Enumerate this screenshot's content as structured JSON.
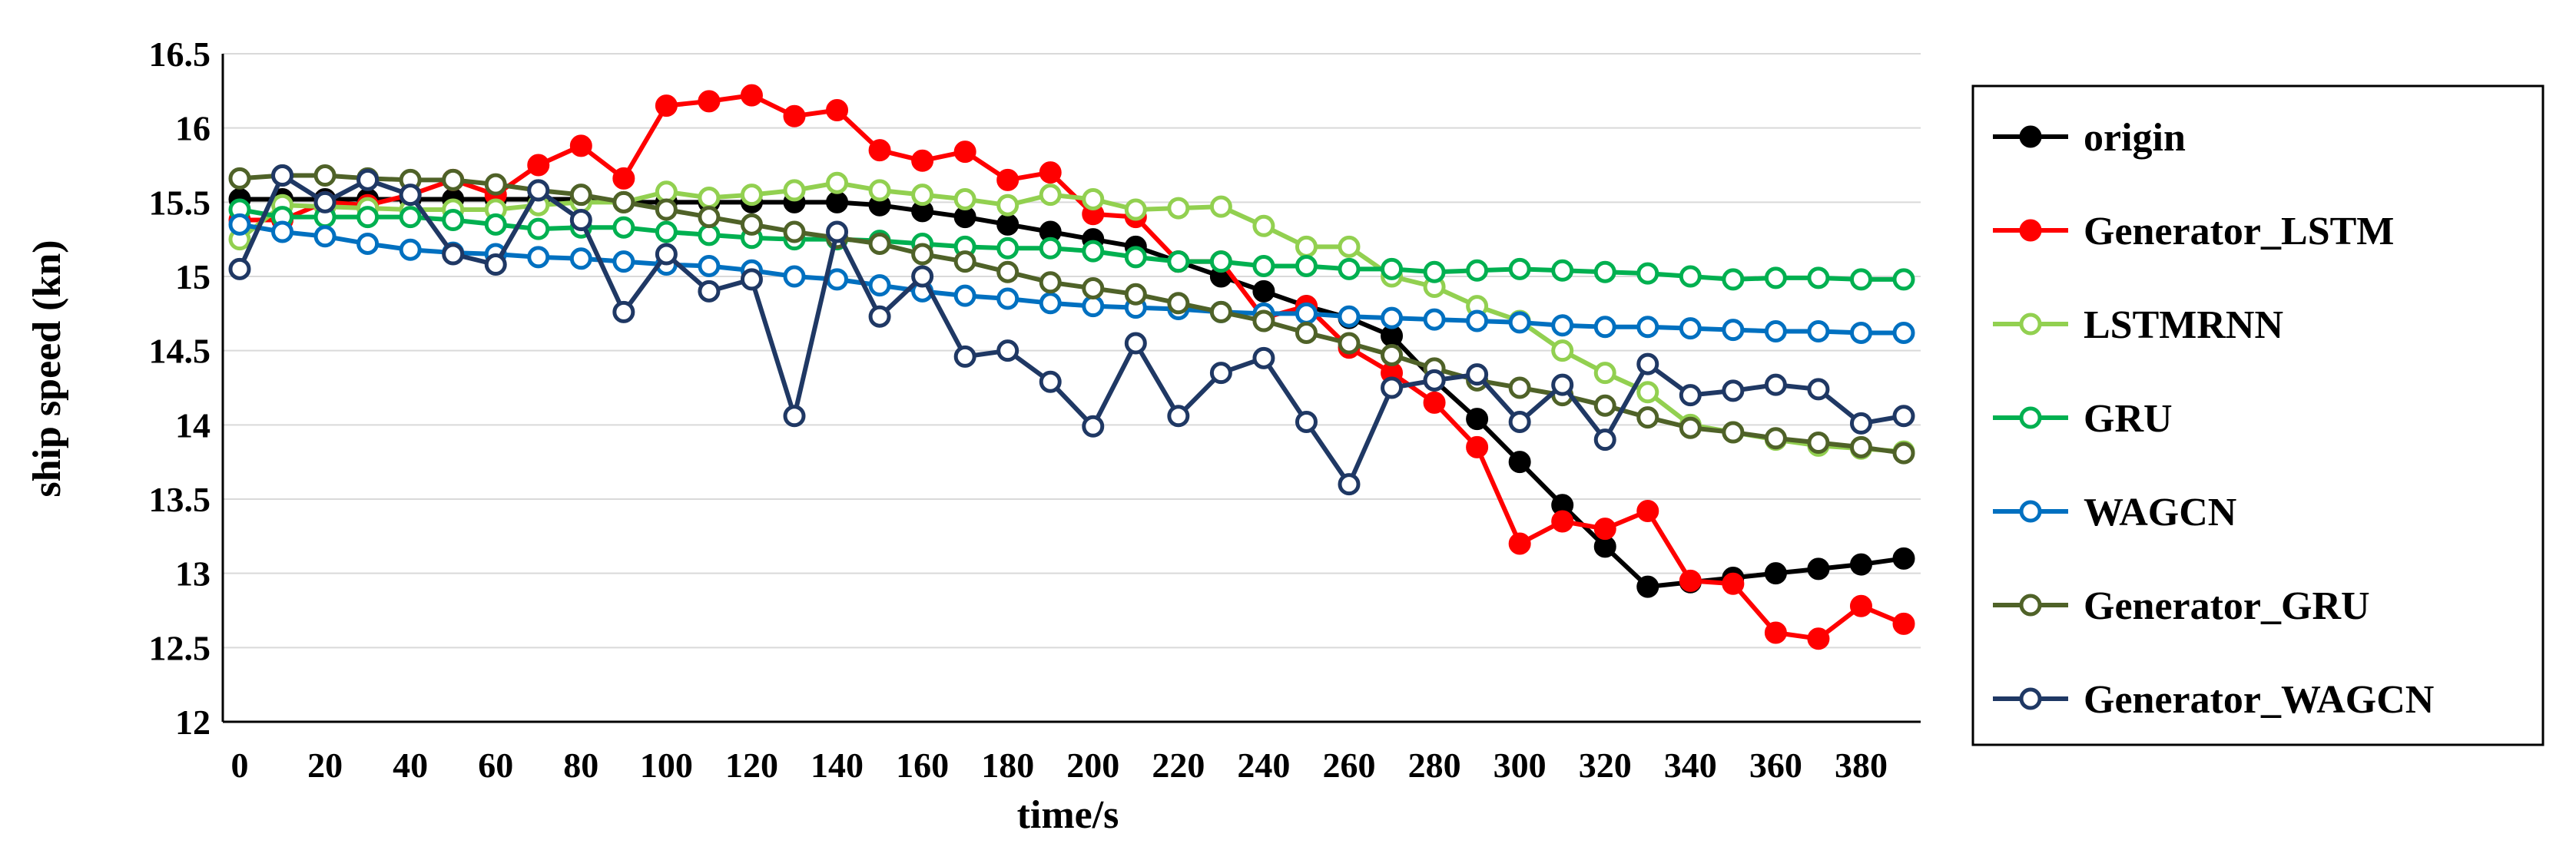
{
  "chart_data": {
    "type": "line",
    "title": "",
    "xlabel": "time/s",
    "ylabel": "ship speed (kn)",
    "xlim": [
      0,
      390
    ],
    "ylim": [
      12,
      16.5
    ],
    "x_ticks": [
      0,
      20,
      40,
      60,
      80,
      100,
      120,
      140,
      160,
      180,
      200,
      220,
      240,
      260,
      280,
      300,
      320,
      340,
      360,
      380
    ],
    "y_ticks": [
      "12",
      "12.5",
      "13",
      "13.5",
      "14",
      "14.5",
      "15",
      "15.5",
      "16",
      "16.5"
    ],
    "grid": "horizontal",
    "legend_position": "right",
    "x": [
      0,
      10,
      20,
      30,
      40,
      50,
      60,
      70,
      80,
      90,
      100,
      110,
      120,
      130,
      140,
      150,
      160,
      170,
      180,
      190,
      200,
      210,
      220,
      230,
      240,
      250,
      260,
      270,
      280,
      290,
      300,
      310,
      320,
      330,
      340,
      350,
      360,
      370,
      380,
      390
    ],
    "series": [
      {
        "name": "origin",
        "color": "#000000",
        "fill": "#000000",
        "values": [
          15.52,
          15.52,
          15.52,
          15.52,
          15.52,
          15.52,
          15.52,
          15.52,
          15.52,
          15.5,
          15.5,
          15.5,
          15.5,
          15.5,
          15.5,
          15.48,
          15.44,
          15.4,
          15.35,
          15.3,
          15.25,
          15.2,
          15.1,
          15.0,
          14.9,
          14.8,
          14.72,
          14.6,
          14.3,
          14.04,
          13.75,
          13.46,
          13.18,
          12.91,
          12.94,
          12.97,
          13.0,
          13.03,
          13.06,
          13.1
        ]
      },
      {
        "name": "Generator_LSTM",
        "color": "#ff0000",
        "fill": "#ff0000",
        "values": [
          15.38,
          15.38,
          15.5,
          15.48,
          15.55,
          15.65,
          15.55,
          15.75,
          15.88,
          15.66,
          16.15,
          16.18,
          16.22,
          16.08,
          16.12,
          15.85,
          15.78,
          15.84,
          15.65,
          15.7,
          15.42,
          15.4,
          15.1,
          15.1,
          14.72,
          14.8,
          14.52,
          14.35,
          14.15,
          13.85,
          13.2,
          13.35,
          13.3,
          13.42,
          12.95,
          12.93,
          12.6,
          12.56,
          12.78,
          12.66
        ]
      },
      {
        "name": "LSTMRNN",
        "color": "#92d050",
        "fill": "#ffffff",
        "values": [
          15.25,
          15.48,
          15.47,
          15.46,
          15.45,
          15.45,
          15.45,
          15.48,
          15.5,
          15.5,
          15.57,
          15.53,
          15.55,
          15.58,
          15.63,
          15.58,
          15.55,
          15.52,
          15.48,
          15.55,
          15.52,
          15.45,
          15.46,
          15.47,
          15.34,
          15.2,
          15.2,
          15.0,
          14.93,
          14.8,
          14.7,
          14.5,
          14.35,
          14.22,
          14.0,
          13.95,
          13.9,
          13.86,
          13.84,
          13.82
        ]
      },
      {
        "name": "GRU",
        "color": "#00b050",
        "fill": "#ffffff",
        "values": [
          15.45,
          15.4,
          15.4,
          15.4,
          15.4,
          15.38,
          15.35,
          15.32,
          15.33,
          15.33,
          15.3,
          15.28,
          15.26,
          15.25,
          15.25,
          15.24,
          15.22,
          15.2,
          15.19,
          15.19,
          15.17,
          15.13,
          15.1,
          15.1,
          15.07,
          15.07,
          15.05,
          15.05,
          15.03,
          15.04,
          15.05,
          15.04,
          15.03,
          15.02,
          15.0,
          14.98,
          14.99,
          14.99,
          14.98,
          14.98
        ]
      },
      {
        "name": "WAGCN",
        "color": "#0070c0",
        "fill": "#ffffff",
        "values": [
          15.35,
          15.3,
          15.27,
          15.22,
          15.18,
          15.16,
          15.15,
          15.13,
          15.12,
          15.1,
          15.08,
          15.07,
          15.04,
          15.0,
          14.98,
          14.94,
          14.9,
          14.87,
          14.85,
          14.82,
          14.8,
          14.79,
          14.78,
          14.76,
          14.75,
          14.75,
          14.73,
          14.72,
          14.71,
          14.7,
          14.69,
          14.67,
          14.66,
          14.66,
          14.65,
          14.64,
          14.63,
          14.63,
          14.62,
          14.62
        ]
      },
      {
        "name": "Generator_GRU",
        "color": "#4f6228",
        "fill": "#ffffff",
        "values": [
          15.66,
          15.68,
          15.68,
          15.66,
          15.65,
          15.65,
          15.62,
          15.58,
          15.55,
          15.5,
          15.45,
          15.4,
          15.35,
          15.3,
          15.26,
          15.22,
          15.15,
          15.1,
          15.03,
          14.96,
          14.92,
          14.88,
          14.82,
          14.76,
          14.7,
          14.62,
          14.55,
          14.47,
          14.38,
          14.3,
          14.25,
          14.2,
          14.13,
          14.05,
          13.98,
          13.95,
          13.91,
          13.88,
          13.85,
          13.81
        ]
      },
      {
        "name": "Generator_WAGCN",
        "color": "#1f3864",
        "fill": "#ffffff",
        "values": [
          15.05,
          15.68,
          15.5,
          15.65,
          15.55,
          15.15,
          15.08,
          15.58,
          15.38,
          14.76,
          15.15,
          14.9,
          14.98,
          14.06,
          15.3,
          14.73,
          15.0,
          14.46,
          14.5,
          14.29,
          13.99,
          14.55,
          14.06,
          14.35,
          14.45,
          14.02,
          13.6,
          14.25,
          14.3,
          14.34,
          14.02,
          14.27,
          13.9,
          14.41,
          14.2,
          14.23,
          14.27,
          14.24,
          14.01,
          14.06
        ]
      }
    ]
  }
}
